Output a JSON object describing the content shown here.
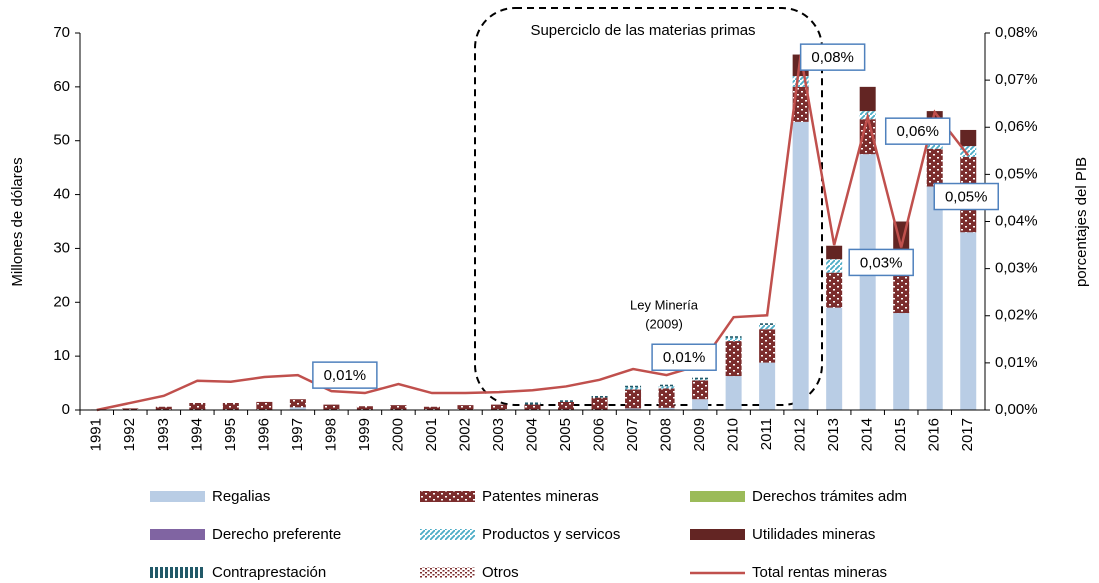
{
  "chart_data": {
    "type": "stacked_bar_line",
    "categories": [
      "1991",
      "1992",
      "1993",
      "1994",
      "1995",
      "1996",
      "1997",
      "1998",
      "1999",
      "2000",
      "2001",
      "2002",
      "2003",
      "2004",
      "2005",
      "2006",
      "2007",
      "2008",
      "2009",
      "2010",
      "2011",
      "2012",
      "2013",
      "2014",
      "2015",
      "2016",
      "2017"
    ],
    "y_label": "Millones de dólares",
    "y2_label": "porcentajes del PIB",
    "ylim": [
      0,
      70
    ],
    "yticks": [
      0,
      10,
      20,
      30,
      40,
      50,
      60,
      70
    ],
    "y2lim": [
      0,
      0.08
    ],
    "y2ticks": [
      {
        "value": 0,
        "label": "0,00%"
      },
      {
        "value": 0.01,
        "label": "0,01%"
      },
      {
        "value": 0.02,
        "label": "0,02%"
      },
      {
        "value": 0.03,
        "label": "0,03%"
      },
      {
        "value": 0.04,
        "label": "0,04%"
      },
      {
        "value": 0.05,
        "label": "0,05%"
      },
      {
        "value": 0.06,
        "label": "0,06%"
      },
      {
        "value": 0.07,
        "label": "0,07%"
      },
      {
        "value": 0.08,
        "label": "0,08%"
      }
    ],
    "annotations": [
      "Superciclo de las materias primas",
      "Ley Minería",
      "(2009)"
    ],
    "series": [
      {
        "name": "Regalias",
        "color": "#b9cde5",
        "values": [
          0,
          0,
          0,
          0,
          0,
          0,
          0.5,
          0,
          0,
          0,
          0,
          0,
          0,
          0,
          0,
          0,
          0.3,
          0.4,
          2,
          6.3,
          8.8,
          53.5,
          19,
          47.5,
          18,
          41.5,
          33
        ]
      },
      {
        "name": "Patentes mineras",
        "color": "#7b2c2c",
        "pattern": "brick",
        "values": [
          0.1,
          0.3,
          0.6,
          1.3,
          1.3,
          1.5,
          1.5,
          1,
          0.7,
          0.9,
          0.6,
          0.9,
          1,
          1,
          1.5,
          2.3,
          3.5,
          3.6,
          3.5,
          6.5,
          6.2,
          6.5,
          6.5,
          6.5,
          8,
          7,
          14
        ]
      },
      {
        "name": "Derechos trámites adm",
        "color": "#9bbb59",
        "values": [
          0,
          0,
          0,
          0,
          0,
          0,
          0,
          0,
          0,
          0,
          0,
          0,
          0,
          0,
          0,
          0,
          0,
          0,
          0,
          0,
          0,
          0,
          0,
          0,
          0,
          0,
          0
        ]
      },
      {
        "name": "Derecho preferente",
        "color": "#8064a2",
        "values": [
          0,
          0,
          0,
          0,
          0,
          0,
          0,
          0,
          0,
          0,
          0,
          0,
          0,
          0,
          0,
          0,
          0,
          0,
          0,
          0,
          0,
          0,
          0,
          0,
          0,
          0,
          0
        ]
      },
      {
        "name": "Productos y servicos",
        "color": "#4bacc6",
        "pattern": "diag",
        "values": [
          0,
          0,
          0,
          0,
          0,
          0,
          0,
          0,
          0,
          0,
          0,
          0,
          0,
          0,
          0,
          0,
          0.4,
          0.4,
          0.2,
          0.6,
          0.8,
          2,
          2.5,
          1.5,
          1,
          3,
          2
        ]
      },
      {
        "name": "Utilidades mineras",
        "color": "#632523",
        "values": [
          0,
          0,
          0,
          0,
          0,
          0,
          0,
          0,
          0,
          0,
          0,
          0,
          0,
          0,
          0,
          0,
          0,
          0,
          0,
          0,
          0,
          4,
          2.5,
          4.5,
          8,
          4,
          3
        ]
      },
      {
        "name": "Contraprestación",
        "color": "#215968",
        "pattern": "vstripe",
        "values": [
          0,
          0,
          0,
          0,
          0,
          0,
          0,
          0,
          0,
          0,
          0,
          0,
          0,
          0.4,
          0.3,
          0.3,
          0.3,
          0.3,
          0.3,
          0.3,
          0.3,
          0,
          0,
          0,
          0,
          0,
          0
        ]
      },
      {
        "name": "Otros",
        "color": "#7b2c2c",
        "pattern": "dots",
        "values": [
          0,
          0,
          0,
          0,
          0,
          0,
          0,
          0,
          0,
          0,
          0,
          0,
          0,
          0,
          0,
          0,
          0,
          0,
          0,
          0,
          0,
          0,
          0,
          0,
          0,
          0,
          0
        ]
      },
      {
        "name": "Total rentas mineras",
        "color": "#c0504d",
        "axis": "y2",
        "line": true,
        "values": [
          0,
          0.0015,
          0.003,
          0.0062,
          0.006,
          0.007,
          0.0074,
          0.004,
          0.0036,
          0.0055,
          0.0036,
          0.0036,
          0.0038,
          0.0042,
          0.005,
          0.0064,
          0.0087,
          0.0074,
          0.0095,
          0.0197,
          0.0201,
          0.0753,
          0.035,
          0.0622,
          0.0345,
          0.0632,
          0.054
        ],
        "value_labels": [
          null,
          null,
          null,
          null,
          null,
          null,
          "0,01%",
          null,
          null,
          null,
          null,
          null,
          null,
          null,
          null,
          null,
          null,
          null,
          "0,01%",
          null,
          null,
          "0,08%",
          null,
          null,
          "0,03%",
          "0,06%",
          "0,05%"
        ]
      }
    ]
  }
}
